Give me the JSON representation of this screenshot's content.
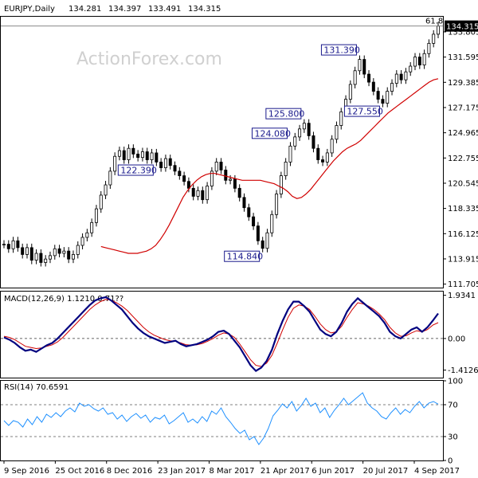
{
  "chart_data": {
    "type": "candlestick",
    "symbol": "EURJPY,Daily",
    "ohlc_header": {
      "open": "134.281",
      "high": "134.397",
      "low": "133.491",
      "close": "134.315"
    },
    "watermark": "ActionForex.com",
    "last_price_label": "134.315",
    "fib_label": "61.8",
    "price_axis": {
      "ylim": [
        111.4,
        135.2
      ],
      "ticks": [
        "133.805",
        "131.595",
        "129.385",
        "127.175",
        "124.965",
        "122.755",
        "120.545",
        "118.335",
        "116.125",
        "113.915",
        "111.705"
      ]
    },
    "x_ticks": [
      "9 Sep 2016",
      "25 Oct 2016",
      "8 Dec 2016",
      "23 Jan 2017",
      "8 Mar 2017",
      "21 Apr 2017",
      "6 Jun 2017",
      "20 Jul 2017",
      "4 Sep 2017"
    ],
    "price_series": {
      "name": "EURJPY",
      "close": [
        115.2,
        114.8,
        115.5,
        114.9,
        114.3,
        114.9,
        113.8,
        114.4,
        113.6,
        113.9,
        114.2,
        114.8,
        114.4,
        114.6,
        113.9,
        114.3,
        115.1,
        115.8,
        116.2,
        117.1,
        118.3,
        119.5,
        120.4,
        121.6,
        122.9,
        123.4,
        122.6,
        123.6,
        123.1,
        122.8,
        123.3,
        122.6,
        123.2,
        122.4,
        121.9,
        122.7,
        122.1,
        121.6,
        121.2,
        120.7,
        120.1,
        119.4,
        119.9,
        119.1,
        120.3,
        121.6,
        122.4,
        121.7,
        120.8,
        120.9,
        120.1,
        119.3,
        118.4,
        117.6,
        116.8,
        115.5,
        114.84,
        116.2,
        117.8,
        119.6,
        121.2,
        122.4,
        123.8,
        124.6,
        125.3,
        125.8,
        124.7,
        123.6,
        122.6,
        122.4,
        123.2,
        124.4,
        125.6,
        126.8,
        127.9,
        129.2,
        130.4,
        131.39,
        130.1,
        129.4,
        128.6,
        127.9,
        127.55,
        128.6,
        129.3,
        130.1,
        129.6,
        130.3,
        130.8,
        131.6,
        130.9,
        131.9,
        132.8,
        133.6,
        134.315
      ],
      "ma": [
        115.0,
        114.9,
        114.8,
        114.7,
        114.6,
        114.5,
        114.4,
        114.4,
        114.4,
        114.5,
        114.6,
        114.8,
        115.1,
        115.6,
        116.2,
        116.9,
        117.7,
        118.5,
        119.3,
        119.9,
        120.4,
        120.8,
        121.1,
        121.3,
        121.4,
        121.4,
        121.3,
        121.2,
        121.1,
        121.0,
        120.9,
        120.8,
        120.8,
        120.8,
        120.8,
        120.8,
        120.7,
        120.6,
        120.5,
        120.3,
        120.1,
        119.8,
        119.4,
        119.2,
        119.3,
        119.6,
        120.0,
        120.5,
        121.0,
        121.5,
        122.0,
        122.5,
        122.9,
        123.3,
        123.6,
        123.8,
        124.0,
        124.3,
        124.7,
        125.1,
        125.5,
        125.9,
        126.3,
        126.7,
        127.0,
        127.3,
        127.6,
        127.9,
        128.2,
        128.5,
        128.8,
        129.1,
        129.4,
        129.6,
        129.7
      ],
      "ma_start_index": 21
    },
    "annotations": [
      {
        "label": "124.080"
      },
      {
        "label": "114.840"
      },
      {
        "label": "125.800"
      },
      {
        "label": "122.390"
      },
      {
        "label": "131.390"
      },
      {
        "label": "127.550"
      }
    ],
    "macd": {
      "title": "MACD(12,26,9) 1.1210 0.71??",
      "ylim": [
        -1.75,
        2.1
      ],
      "ticks": [
        "1.9341",
        "0.00",
        "-1.4126"
      ],
      "macd": [
        0.05,
        -0.05,
        -0.2,
        -0.4,
        -0.55,
        -0.5,
        -0.6,
        -0.45,
        -0.3,
        -0.2,
        0.0,
        0.25,
        0.5,
        0.75,
        1.0,
        1.25,
        1.5,
        1.7,
        1.8,
        1.85,
        1.7,
        1.5,
        1.3,
        1.0,
        0.7,
        0.45,
        0.25,
        0.1,
        0.0,
        -0.1,
        -0.2,
        -0.15,
        -0.1,
        -0.25,
        -0.35,
        -0.3,
        -0.25,
        -0.15,
        -0.05,
        0.1,
        0.3,
        0.35,
        0.2,
        -0.1,
        -0.4,
        -0.8,
        -1.2,
        -1.45,
        -1.3,
        -1.0,
        -0.5,
        0.2,
        0.8,
        1.3,
        1.65,
        1.65,
        1.45,
        1.2,
        0.8,
        0.4,
        0.2,
        0.1,
        0.3,
        0.7,
        1.2,
        1.55,
        1.8,
        1.6,
        1.4,
        1.2,
        1.0,
        0.7,
        0.3,
        0.1,
        0.0,
        0.2,
        0.4,
        0.5,
        0.3,
        0.5,
        0.8,
        1.121
      ],
      "signal": [
        0.1,
        0.05,
        -0.05,
        -0.2,
        -0.35,
        -0.4,
        -0.45,
        -0.42,
        -0.35,
        -0.28,
        -0.15,
        0.05,
        0.3,
        0.55,
        0.8,
        1.05,
        1.3,
        1.5,
        1.65,
        1.75,
        1.72,
        1.6,
        1.45,
        1.25,
        1.0,
        0.75,
        0.5,
        0.3,
        0.15,
        0.05,
        -0.05,
        -0.1,
        -0.12,
        -0.2,
        -0.28,
        -0.3,
        -0.28,
        -0.22,
        -0.12,
        0.0,
        0.15,
        0.25,
        0.2,
        0.05,
        -0.25,
        -0.6,
        -0.95,
        -1.2,
        -1.25,
        -1.1,
        -0.75,
        -0.2,
        0.4,
        0.95,
        1.35,
        1.5,
        1.45,
        1.3,
        1.0,
        0.65,
        0.4,
        0.25,
        0.3,
        0.55,
        0.95,
        1.3,
        1.6,
        1.55,
        1.45,
        1.3,
        1.1,
        0.85,
        0.5,
        0.25,
        0.1,
        0.12,
        0.25,
        0.35,
        0.3,
        0.4,
        0.6,
        0.71
      ]
    },
    "rsi": {
      "title": "RSI(14) 70.6591",
      "ylim": [
        0,
        100
      ],
      "ticks": [
        "100",
        "70",
        "30",
        "0"
      ],
      "levels": [
        70,
        30
      ],
      "values": [
        50,
        44,
        50,
        48,
        42,
        52,
        45,
        55,
        48,
        58,
        54,
        60,
        55,
        62,
        66,
        61,
        72,
        68,
        70,
        65,
        62,
        66,
        58,
        60,
        52,
        57,
        49,
        55,
        59,
        53,
        57,
        48,
        54,
        52,
        57,
        46,
        50,
        55,
        60,
        48,
        52,
        47,
        55,
        49,
        62,
        58,
        66,
        55,
        48,
        40,
        34,
        38,
        26,
        30,
        20,
        28,
        40,
        56,
        63,
        71,
        66,
        74,
        62,
        69,
        78,
        68,
        72,
        60,
        66,
        54,
        63,
        70,
        78,
        70,
        75,
        80,
        85,
        72,
        66,
        62,
        55,
        52,
        60,
        66,
        58,
        64,
        60,
        68,
        74,
        66,
        72,
        74,
        70.6591
      ]
    }
  }
}
